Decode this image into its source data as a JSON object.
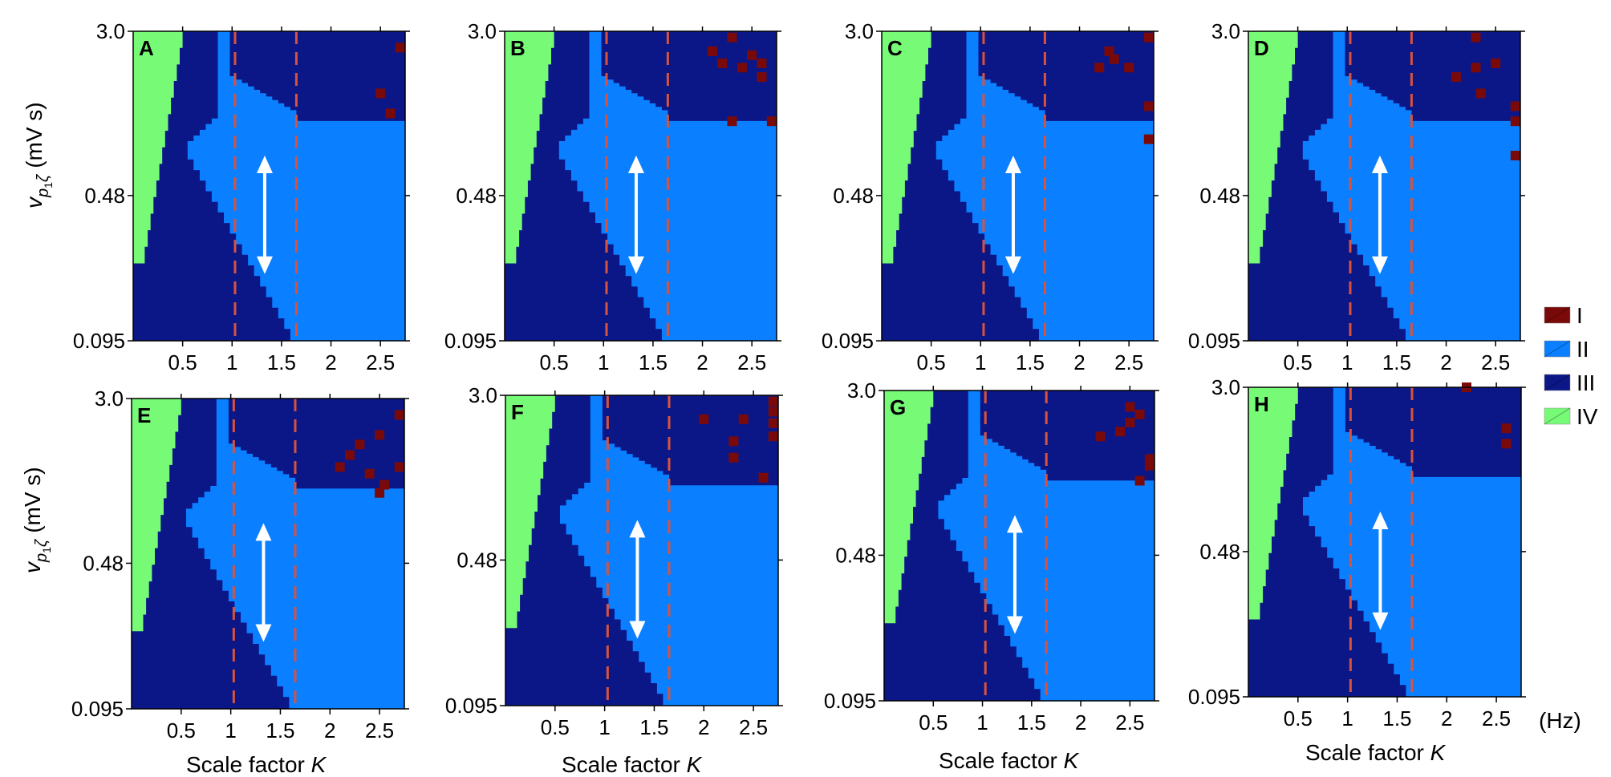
{
  "figure": {
    "ylabel_prefix": "v",
    "ylabel_sub": "p",
    "ylabel_subsub": "1",
    "ylabel_zeta": "ζ",
    "ylabel_units": "(mV s)",
    "xlabel_text": "Scale factor ",
    "xlabel_var": "K",
    "x_units": "(Hz)"
  },
  "legend": [
    {
      "label": "I",
      "color": "#7a0a0a"
    },
    {
      "label": "II",
      "color": "#0a7fff"
    },
    {
      "label": "III",
      "color": "#0b1687"
    },
    {
      "label": "IV",
      "color": "#77fb77"
    }
  ],
  "chart_data": [
    {
      "type": "heatmap",
      "panel": "A",
      "xlim": [
        0,
        2.75
      ],
      "ylim": [
        0.095,
        3.0
      ],
      "yscale": "log",
      "x_ticks": [
        "0.5",
        "1",
        "1.5",
        "2",
        "2.5"
      ],
      "y_ticks": [
        "0.095",
        "0.48",
        "3.0"
      ],
      "dashed_lines_x": [
        1.03,
        1.65
      ],
      "arrow_x": 1.33,
      "arrow_y": [
        0.2,
        0.75
      ],
      "region_I_cells": [
        [
          2.7,
          2.5
        ],
        [
          2.5,
          1.5
        ],
        [
          2.6,
          1.2
        ]
      ]
    },
    {
      "type": "heatmap",
      "panel": "B",
      "xlim": [
        0,
        2.75
      ],
      "ylim": [
        0.095,
        3.0
      ],
      "yscale": "log",
      "x_ticks": [
        "0.5",
        "1",
        "1.5",
        "2",
        "2.5"
      ],
      "y_ticks": [
        "0.095",
        "0.48",
        "3.0"
      ],
      "dashed_lines_x": [
        1.03,
        1.65
      ],
      "arrow_x": 1.33,
      "arrow_y": [
        0.2,
        0.75
      ],
      "region_I_cells": [
        [
          2.3,
          2.8
        ],
        [
          2.1,
          2.4
        ],
        [
          2.2,
          2.1
        ],
        [
          2.5,
          2.3
        ],
        [
          2.6,
          2.1
        ],
        [
          2.6,
          1.8
        ],
        [
          2.4,
          2.0
        ],
        [
          2.3,
          1.1
        ],
        [
          2.7,
          1.1
        ]
      ]
    },
    {
      "type": "heatmap",
      "panel": "C",
      "xlim": [
        0,
        2.75
      ],
      "ylim": [
        0.095,
        3.0
      ],
      "yscale": "log",
      "x_ticks": [
        "0.5",
        "1",
        "1.5",
        "2",
        "2.5"
      ],
      "y_ticks": [
        "0.095",
        "0.48",
        "3.0"
      ],
      "dashed_lines_x": [
        1.03,
        1.65
      ],
      "arrow_x": 1.33,
      "arrow_y": [
        0.2,
        0.75
      ],
      "region_I_cells": [
        [
          2.3,
          2.4
        ],
        [
          2.35,
          2.2
        ],
        [
          2.2,
          2.0
        ],
        [
          2.5,
          2.0
        ],
        [
          2.7,
          2.8
        ],
        [
          2.7,
          1.3
        ],
        [
          2.7,
          0.9
        ]
      ]
    },
    {
      "type": "heatmap",
      "panel": "D",
      "xlim": [
        0,
        2.75
      ],
      "ylim": [
        0.095,
        3.0
      ],
      "yscale": "log",
      "x_ticks": [
        "0.5",
        "1",
        "1.5",
        "2",
        "2.5"
      ],
      "y_ticks": [
        "0.095",
        "0.48",
        "3.0"
      ],
      "dashed_lines_x": [
        1.03,
        1.65
      ],
      "arrow_x": 1.33,
      "arrow_y": [
        0.2,
        0.75
      ],
      "region_I_cells": [
        [
          2.3,
          2.8
        ],
        [
          2.5,
          2.1
        ],
        [
          2.3,
          2.0
        ],
        [
          2.1,
          1.8
        ],
        [
          2.35,
          1.5
        ],
        [
          2.7,
          1.3
        ],
        [
          2.7,
          1.1
        ],
        [
          2.7,
          0.75
        ]
      ]
    },
    {
      "type": "heatmap",
      "panel": "E",
      "xlim": [
        0,
        2.75
      ],
      "ylim": [
        0.095,
        3.0
      ],
      "yscale": "log",
      "x_ticks": [
        "0.5",
        "1",
        "1.5",
        "2",
        "2.5"
      ],
      "y_ticks": [
        "0.095",
        "0.48",
        "3.0"
      ],
      "dashed_lines_x": [
        1.03,
        1.65
      ],
      "arrow_x": 1.33,
      "arrow_y": [
        0.2,
        0.75
      ],
      "region_I_cells": [
        [
          2.7,
          2.5
        ],
        [
          2.5,
          2.0
        ],
        [
          2.3,
          1.8
        ],
        [
          2.2,
          1.6
        ],
        [
          2.1,
          1.4
        ],
        [
          2.7,
          1.4
        ],
        [
          2.4,
          1.3
        ],
        [
          2.55,
          1.15
        ],
        [
          2.5,
          1.05
        ]
      ]
    },
    {
      "type": "heatmap",
      "panel": "F",
      "xlim": [
        0,
        2.75
      ],
      "ylim": [
        0.095,
        3.0
      ],
      "yscale": "log",
      "x_ticks": [
        "0.5",
        "1",
        "1.5",
        "2",
        "2.5"
      ],
      "y_ticks": [
        "0.095",
        "0.48",
        "3.0"
      ],
      "dashed_lines_x": [
        1.03,
        1.65
      ],
      "arrow_x": 1.33,
      "arrow_y": [
        0.2,
        0.75
      ],
      "region_I_cells": [
        [
          2.7,
          2.8
        ],
        [
          2.7,
          2.5
        ],
        [
          2.4,
          2.3
        ],
        [
          2.7,
          2.2
        ],
        [
          2.0,
          2.3
        ],
        [
          2.7,
          1.9
        ],
        [
          2.3,
          1.8
        ],
        [
          2.3,
          1.5
        ],
        [
          2.6,
          1.2
        ]
      ]
    },
    {
      "type": "heatmap",
      "panel": "G",
      "xlim": [
        0,
        2.75
      ],
      "ylim": [
        0.095,
        3.0
      ],
      "yscale": "log",
      "x_ticks": [
        "0.5",
        "1",
        "1.5",
        "2",
        "2.5"
      ],
      "y_ticks": [
        "0.095",
        "0.48",
        "3.0"
      ],
      "dashed_lines_x": [
        1.03,
        1.65
      ],
      "arrow_x": 1.33,
      "arrow_y": [
        0.2,
        0.75
      ],
      "region_I_cells": [
        [
          2.5,
          2.5
        ],
        [
          2.6,
          2.3
        ],
        [
          2.5,
          2.1
        ],
        [
          2.4,
          1.9
        ],
        [
          2.2,
          1.8
        ],
        [
          2.7,
          1.4
        ],
        [
          2.7,
          1.3
        ],
        [
          2.6,
          1.1
        ]
      ]
    },
    {
      "type": "heatmap",
      "panel": "H",
      "xlim": [
        0,
        2.75
      ],
      "ylim": [
        0.095,
        3.0
      ],
      "yscale": "log",
      "x_ticks": [
        "0.5",
        "1",
        "1.5",
        "2",
        "2.5"
      ],
      "y_ticks": [
        "0.095",
        "0.48",
        "3.0"
      ],
      "dashed_lines_x": [
        1.03,
        1.65
      ],
      "arrow_x": 1.33,
      "arrow_y": [
        0.2,
        0.75
      ],
      "region_I_cells": [
        [
          2.2,
          3.0
        ],
        [
          2.6,
          1.9
        ],
        [
          2.6,
          1.6
        ]
      ]
    }
  ]
}
